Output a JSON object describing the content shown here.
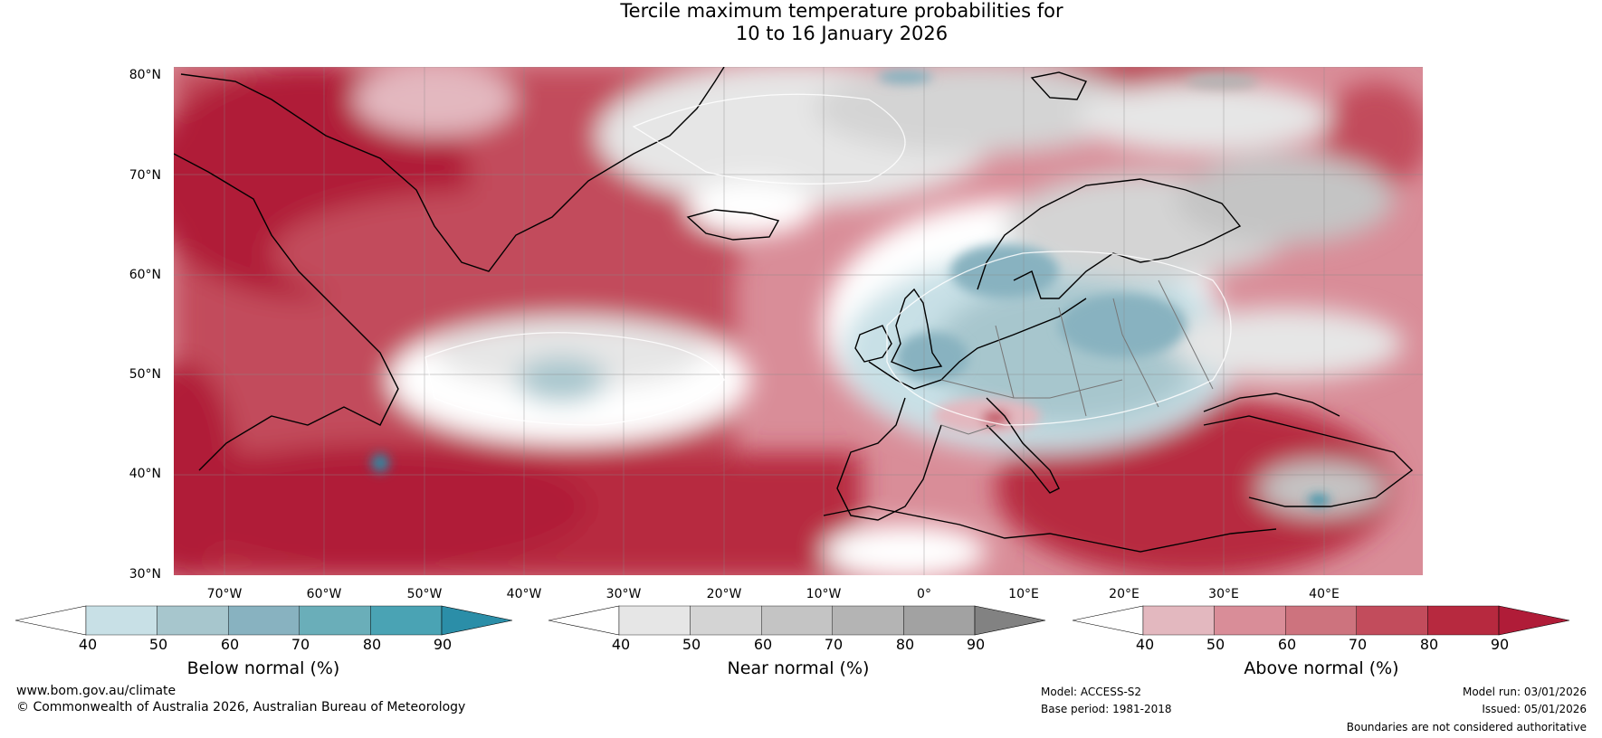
{
  "title": {
    "line1": "Tercile maximum temperature probabilities for",
    "line2": "10 to 16 January 2026"
  },
  "map": {
    "lat_labels": [
      "80°N",
      "70°N",
      "60°N",
      "50°N",
      "40°N",
      "30°N"
    ],
    "lon_labels": [
      "70°W",
      "60°W",
      "50°W",
      "40°W",
      "30°W",
      "20°W",
      "10°W",
      "0°",
      "10°E",
      "20°E",
      "30°E",
      "40°E"
    ],
    "extent": {
      "lon_min": -75,
      "lon_max": 50,
      "lat_min": 30,
      "lat_max": 81
    }
  },
  "colorbars": [
    {
      "name": "below",
      "label": "Below normal (%)",
      "ticks": [
        "40",
        "50",
        "60",
        "70",
        "80",
        "90"
      ],
      "colors": [
        "#ffffff",
        "#c8e0e6",
        "#a7c6cd",
        "#88b2c0",
        "#6aaeb9",
        "#4aa3b4",
        "#2b8ea8"
      ]
    },
    {
      "name": "near",
      "label": "Near normal (%)",
      "ticks": [
        "40",
        "50",
        "60",
        "70",
        "80",
        "90"
      ],
      "colors": [
        "#ffffff",
        "#e6e6e6",
        "#d4d4d4",
        "#c4c4c4",
        "#b4b4b4",
        "#a2a2a2",
        "#828282"
      ]
    },
    {
      "name": "above",
      "label": "Above normal (%)",
      "ticks": [
        "40",
        "50",
        "60",
        "70",
        "80",
        "90"
      ],
      "colors": [
        "#ffffff",
        "#e3b8bf",
        "#d98d98",
        "#cd737e",
        "#c24c5c",
        "#b7293f",
        "#b01c38"
      ]
    }
  ],
  "footer": {
    "website": "www.bom.gov.au/climate",
    "copyright": "© Commonwealth of Australia 2026, Australian Bureau of Meteorology",
    "model": "Model: ACCESS-S2",
    "base_period": "Base period: 1981-2018",
    "model_run": "Model run: 03/01/2026",
    "issued": "Issued: 05/01/2026",
    "disclaimer": "Boundaries are not considered authoritative"
  }
}
